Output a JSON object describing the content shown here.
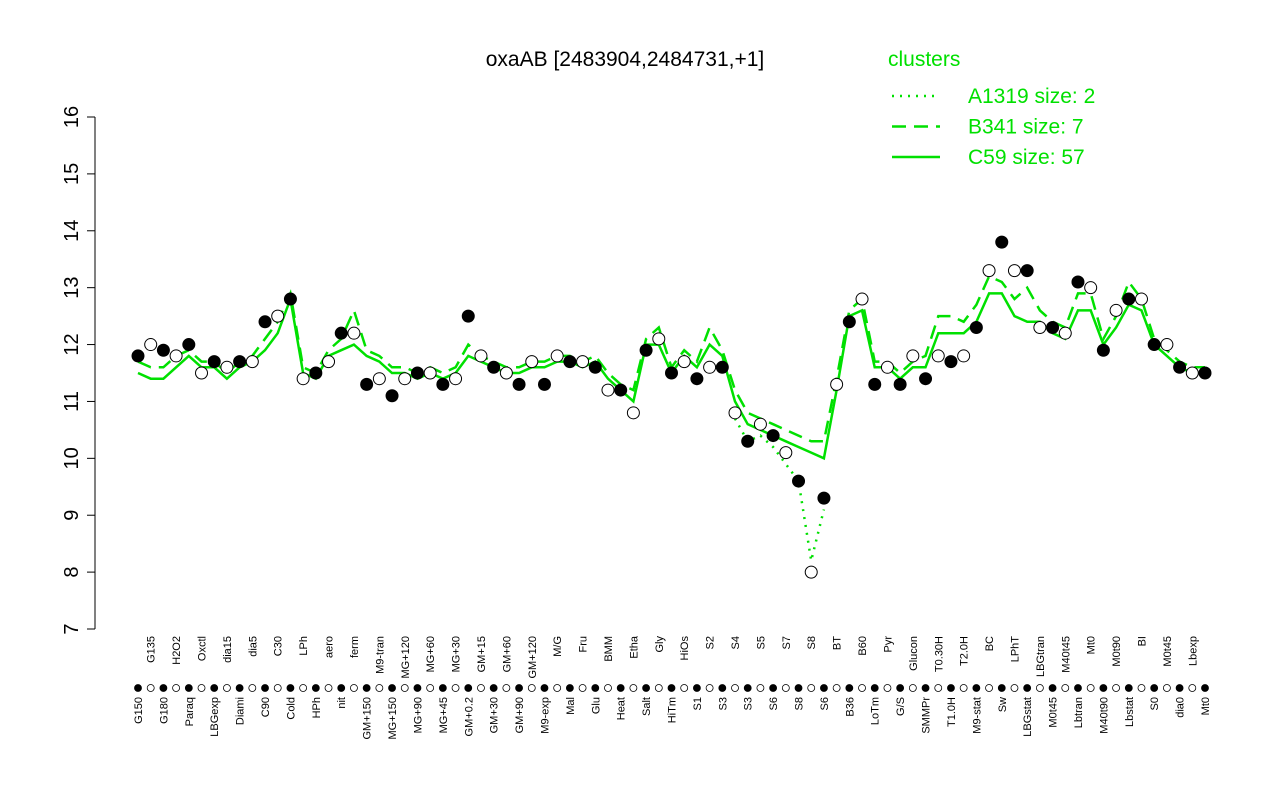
{
  "chart_data": {
    "type": "line",
    "title": "oxaAB [2483904,2484731,+1]",
    "legend_title": "clusters",
    "ylim": [
      7,
      16
    ],
    "yticks": [
      7,
      8,
      9,
      10,
      11,
      12,
      13,
      14,
      15,
      16
    ],
    "categories": [
      "G150",
      "G135",
      "G180",
      "H2O2",
      "Paraq",
      "Oxctl",
      "LBGexp",
      "dia15",
      "Diami",
      "dia5",
      "C90",
      "C30",
      "Cold",
      "LPh",
      "HPh",
      "aero",
      "nit",
      "ferm",
      "GM+150",
      "M9-tran",
      "MG+150",
      "MG+120",
      "MG+90",
      "MG+60",
      "MG+45",
      "MG+30",
      "GM+0.2",
      "GM+15",
      "GM+30",
      "GM+60",
      "GM+90",
      "GM+120",
      "M9-exp",
      "M/G",
      "Mal",
      "Fru",
      "Glu",
      "BMM",
      "Heat",
      "Etha",
      "Salt",
      "Gly",
      "HiTm",
      "HiOs",
      "S1",
      "S2",
      "S3",
      "S4",
      "S3",
      "S5",
      "S6",
      "S7",
      "S8",
      "S8",
      "S6",
      "BT",
      "B36",
      "B60",
      "LoTm",
      "Pyr",
      "G/S",
      "Glucon",
      "SMMPr",
      "T0.30H",
      "T1.0H",
      "T2.0H",
      "M9-stat",
      "BC",
      "Sw",
      "LPhT",
      "LBGstat",
      "LBGtran",
      "M0t45",
      "M40t45",
      "Lbtran",
      "Mt0",
      "M40t90",
      "M0t90",
      "Lbstat",
      "BI",
      "S0",
      "M0t45",
      "dia0",
      "Lbexp",
      "Mt0"
    ],
    "values": [
      11.8,
      12.0,
      11.9,
      11.8,
      12.0,
      11.5,
      11.7,
      11.6,
      11.7,
      11.7,
      12.4,
      12.5,
      12.8,
      11.4,
      11.5,
      11.7,
      12.2,
      12.2,
      11.3,
      11.4,
      11.1,
      11.4,
      11.5,
      11.5,
      11.3,
      11.4,
      12.5,
      11.8,
      11.6,
      11.5,
      11.3,
      11.7,
      11.3,
      11.8,
      11.7,
      11.7,
      11.6,
      11.2,
      11.2,
      10.8,
      11.9,
      12.1,
      11.5,
      11.7,
      11.4,
      11.6,
      11.6,
      10.8,
      10.3,
      10.6,
      10.4,
      10.1,
      9.6,
      8.0,
      9.3,
      11.3,
      12.4,
      12.8,
      11.3,
      11.6,
      11.3,
      11.8,
      11.4,
      11.8,
      11.7,
      11.8,
      12.3,
      13.3,
      13.8,
      13.3,
      13.3,
      12.3,
      12.3,
      12.2,
      13.1,
      13.0,
      11.9,
      12.6,
      12.8,
      12.8,
      12.0,
      12.0,
      11.6,
      11.5,
      11.5
    ],
    "series": [
      {
        "name": "A1319 size: 2",
        "color": "#00e000",
        "dash": "dotted",
        "values": [
          null,
          null,
          null,
          null,
          null,
          null,
          null,
          null,
          null,
          null,
          null,
          null,
          null,
          null,
          null,
          null,
          null,
          null,
          null,
          null,
          null,
          null,
          null,
          null,
          null,
          null,
          null,
          null,
          null,
          null,
          null,
          null,
          null,
          null,
          null,
          null,
          null,
          null,
          null,
          null,
          null,
          null,
          null,
          null,
          null,
          null,
          null,
          10.7,
          10.3,
          10.4,
          10.2,
          9.9,
          9.6,
          8.2,
          9.1,
          null,
          null,
          null,
          null,
          null,
          null,
          null,
          null,
          null,
          null,
          null,
          null,
          null,
          null,
          null,
          null,
          null,
          null,
          null,
          null,
          null,
          null,
          null,
          null,
          null,
          null,
          null,
          null,
          null,
          null
        ]
      },
      {
        "name": "B341 size: 7",
        "color": "#00e000",
        "dash": "dashed",
        "values": [
          11.7,
          11.6,
          11.6,
          11.8,
          11.9,
          11.7,
          11.7,
          11.5,
          11.7,
          11.8,
          12.1,
          12.4,
          12.9,
          11.6,
          11.5,
          11.9,
          12.1,
          12.6,
          11.9,
          11.8,
          11.6,
          11.6,
          11.5,
          11.6,
          11.5,
          11.6,
          12.0,
          11.8,
          11.7,
          11.6,
          11.6,
          11.7,
          11.7,
          11.8,
          11.8,
          11.7,
          11.8,
          11.5,
          11.3,
          11.2,
          12.1,
          12.3,
          11.6,
          11.9,
          11.7,
          12.3,
          11.9,
          11.2,
          10.8,
          10.7,
          10.6,
          10.5,
          10.4,
          10.3,
          10.3,
          11.4,
          12.6,
          12.8,
          11.7,
          11.7,
          11.5,
          11.7,
          11.8,
          12.5,
          12.5,
          12.4,
          12.7,
          13.2,
          13.1,
          12.8,
          13.0,
          12.6,
          12.4,
          12.3,
          12.9,
          12.9,
          12.1,
          12.5,
          13.1,
          12.8,
          12.1,
          11.9,
          11.7,
          11.6,
          11.6
        ]
      },
      {
        "name": "C59 size: 57",
        "color": "#00e000",
        "dash": "solid",
        "values": [
          11.5,
          11.4,
          11.4,
          11.6,
          11.8,
          11.6,
          11.6,
          11.4,
          11.6,
          11.7,
          11.9,
          12.2,
          12.8,
          11.5,
          11.4,
          11.8,
          11.9,
          12.0,
          11.8,
          11.7,
          11.5,
          11.5,
          11.4,
          11.5,
          11.4,
          11.5,
          11.8,
          11.7,
          11.6,
          11.5,
          11.5,
          11.6,
          11.6,
          11.7,
          11.7,
          11.6,
          11.7,
          11.4,
          11.2,
          11.0,
          12.0,
          12.0,
          11.5,
          11.8,
          11.6,
          12.0,
          11.8,
          11.0,
          10.6,
          10.5,
          10.4,
          10.3,
          10.2,
          10.1,
          10.0,
          11.2,
          12.5,
          12.6,
          11.6,
          11.6,
          11.4,
          11.6,
          11.6,
          12.2,
          12.2,
          12.2,
          12.4,
          12.9,
          12.9,
          12.5,
          12.4,
          12.4,
          12.2,
          12.1,
          12.6,
          12.6,
          12.0,
          12.3,
          12.7,
          12.6,
          12.0,
          11.8,
          11.6,
          11.5,
          11.5
        ]
      }
    ]
  }
}
